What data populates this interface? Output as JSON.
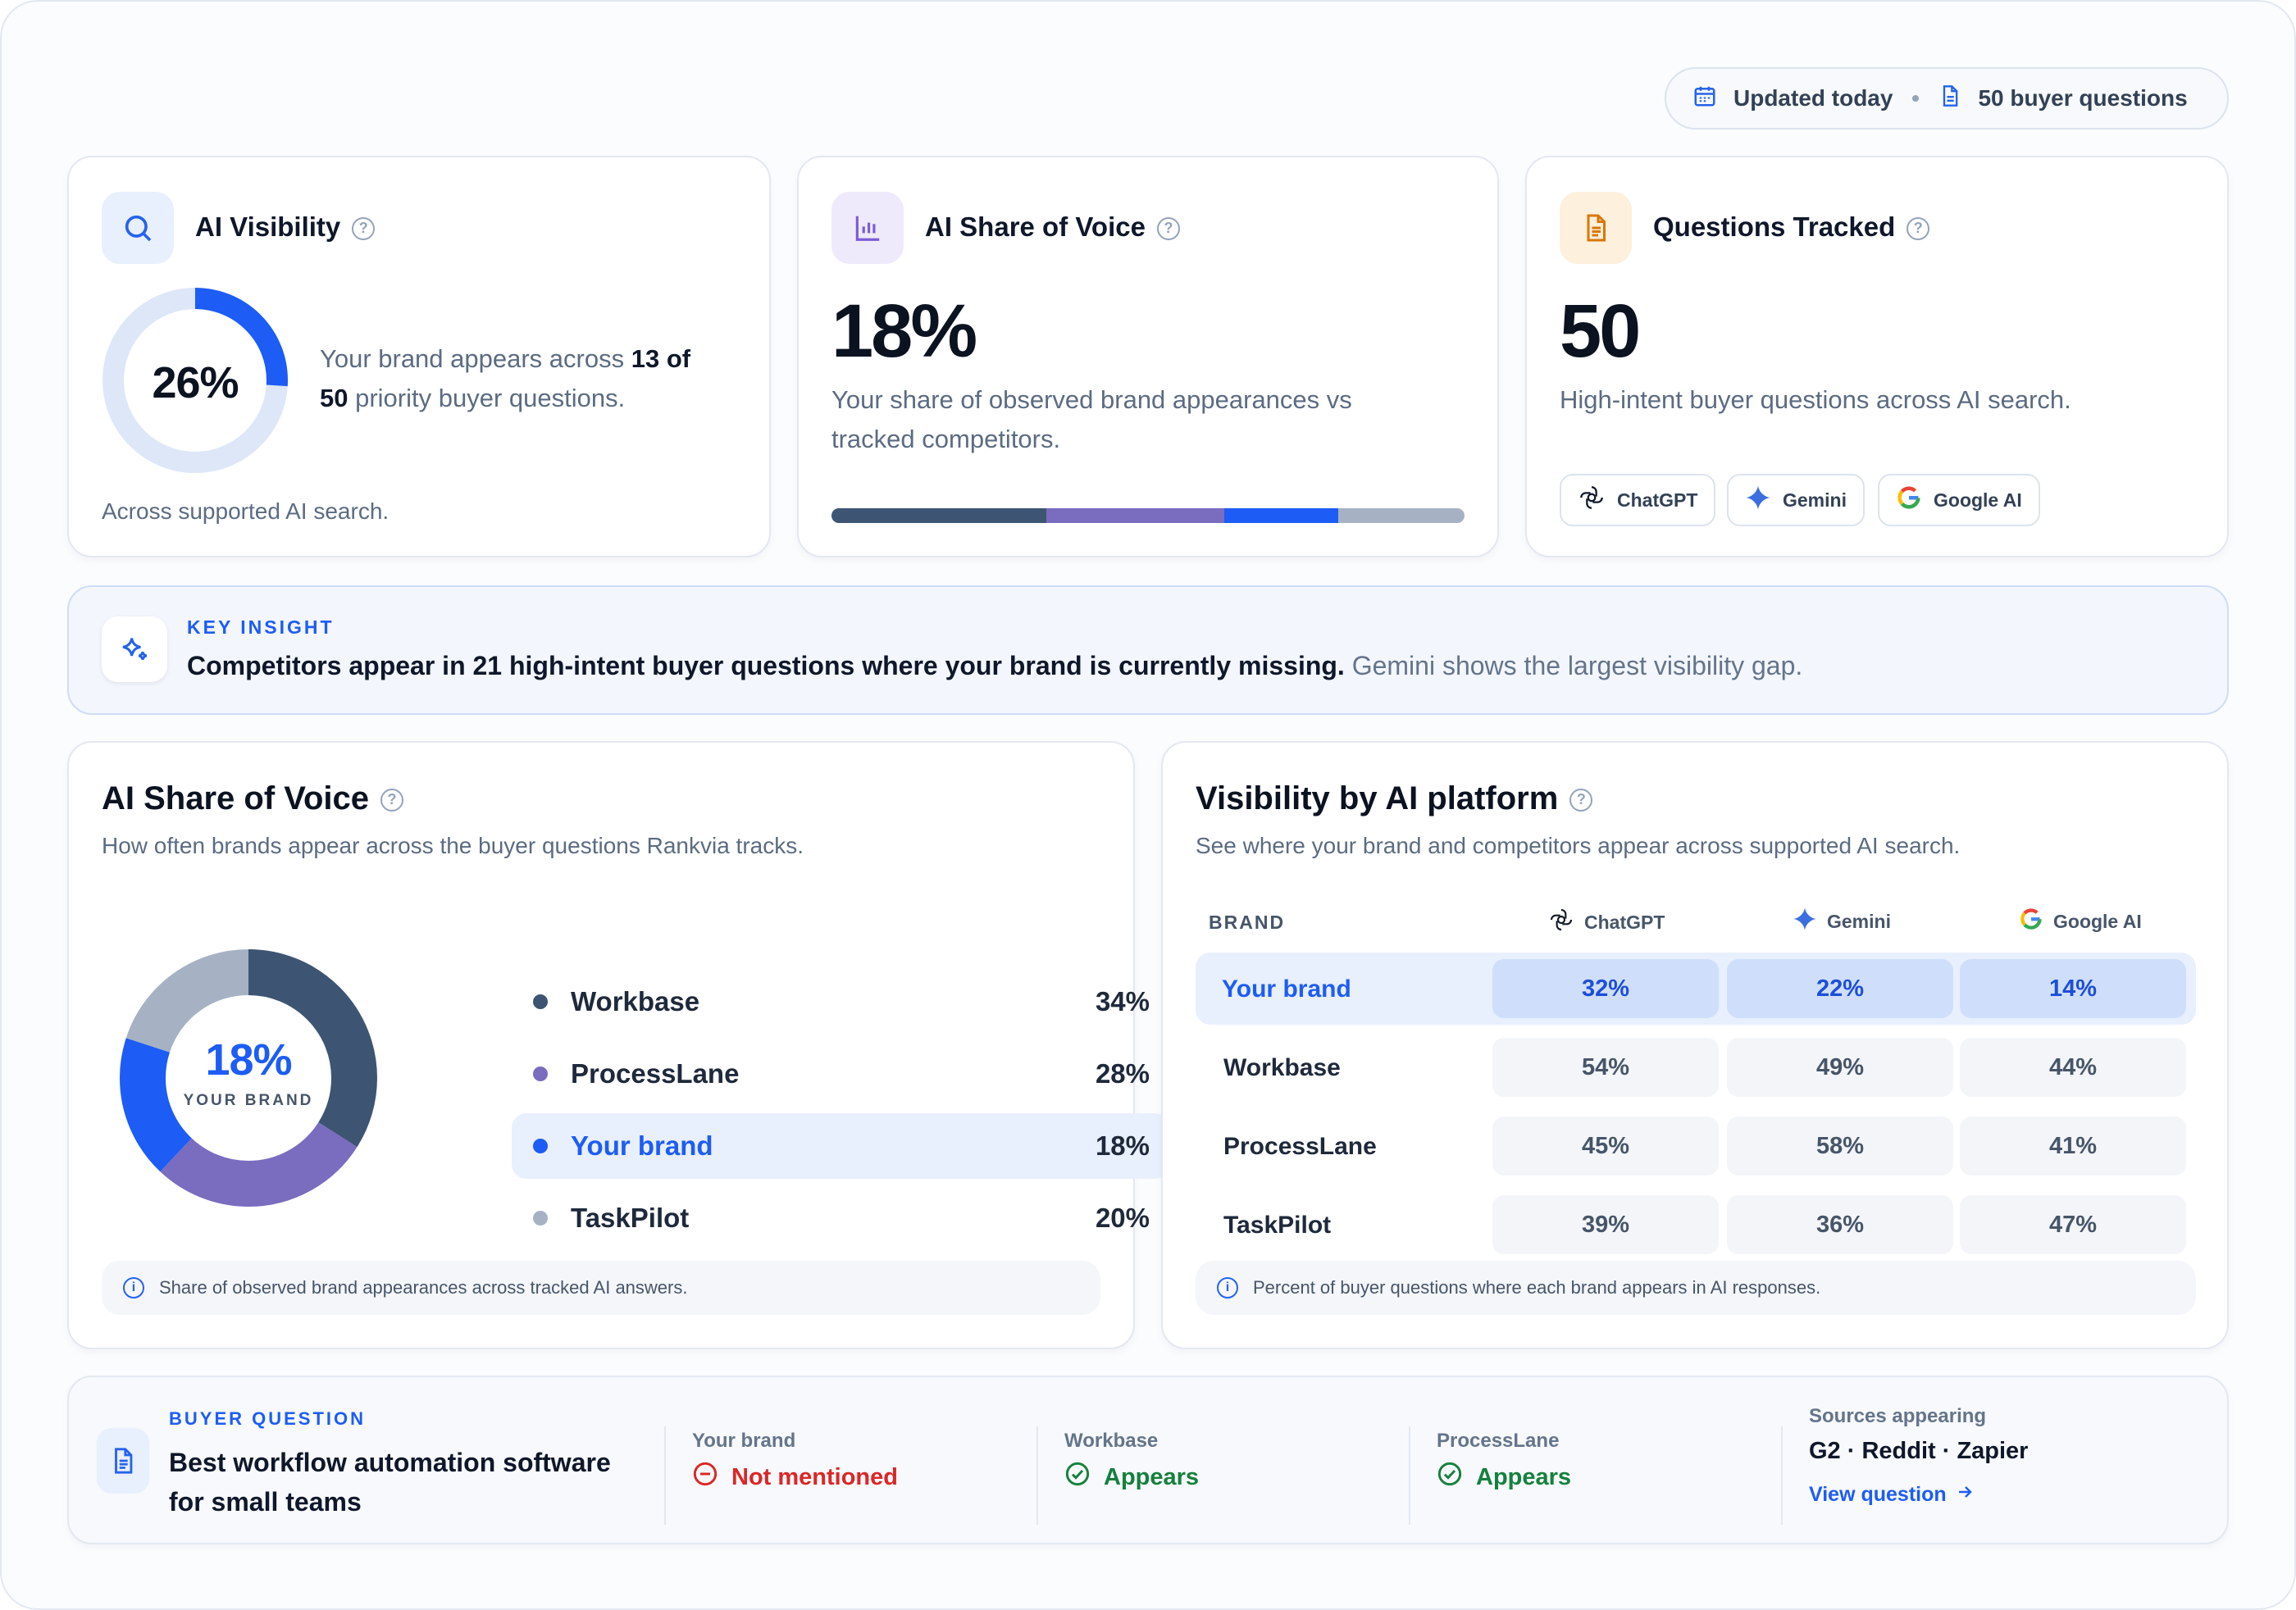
{
  "header": {
    "updated": "Updated today",
    "questions_count": "50 buyer questions"
  },
  "ai_visibility": {
    "title": "AI Visibility",
    "percent": "26%",
    "value": 0.26,
    "desc_prefix": "Your brand appears across ",
    "desc_bold1": "13 of",
    "desc_bold2": "50",
    "desc_suffix": " priority buyer questions.",
    "footer": "Across supported AI search."
  },
  "share_card": {
    "title": "AI Share of Voice",
    "percent": "18%",
    "desc_line1": "Your share of observed brand appearances vs",
    "desc_line2": "tracked competitors.",
    "bar_segments": [
      {
        "name": "Workbase",
        "share": 34,
        "color": "#3d5573"
      },
      {
        "name": "ProcessLane",
        "share": 28,
        "color": "#7a6cbf"
      },
      {
        "name": "Your brand",
        "share": 18,
        "color": "#1d5cf5"
      },
      {
        "name": "TaskPilot",
        "share": 20,
        "color": "#a6b2c4"
      }
    ]
  },
  "questions_card": {
    "title": "Questions Tracked",
    "value": "50",
    "desc": "High-intent buyer questions across AI search.",
    "platforms": [
      "ChatGPT",
      "Gemini",
      "Google AI"
    ]
  },
  "insight": {
    "label": "KEY INSIGHT",
    "bold": "Competitors appear in 21 high-intent buyer questions where your brand is currently missing.",
    "rest": " Gemini shows the largest visibility gap."
  },
  "share_section": {
    "title": "AI Share of Voice",
    "subtitle": "How often brands appear across the buyer questions Rankvia tracks.",
    "center_value": "18%",
    "center_label": "YOUR BRAND",
    "note": "Share of observed brand appearances across tracked AI answers."
  },
  "chart_data": {
    "type": "pie",
    "categories": [
      "Workbase",
      "ProcessLane",
      "Your brand",
      "TaskPilot"
    ],
    "values": [
      34,
      28,
      18,
      20
    ],
    "labels": [
      "34%",
      "28%",
      "18%",
      "20%"
    ],
    "colors": [
      "#3d5573",
      "#7a6cbf",
      "#1d5cf5",
      "#a6b2c4"
    ],
    "highlight": "Your brand"
  },
  "platform_section": {
    "title": "Visibility by AI platform",
    "subtitle": "See where your brand and competitors appear across supported AI search.",
    "col_brand": "BRAND",
    "columns": [
      "ChatGPT",
      "Gemini",
      "Google AI"
    ],
    "rows": [
      {
        "brand": "Your brand",
        "values": [
          "32%",
          "22%",
          "14%"
        ]
      },
      {
        "brand": "Workbase",
        "values": [
          "54%",
          "49%",
          "44%"
        ]
      },
      {
        "brand": "ProcessLane",
        "values": [
          "45%",
          "58%",
          "41%"
        ]
      },
      {
        "brand": "TaskPilot",
        "values": [
          "39%",
          "36%",
          "47%"
        ]
      }
    ],
    "note": "Percent of buyer questions where each brand appears in AI responses."
  },
  "buyer_question": {
    "label": "BUYER QUESTION",
    "line1": "Best workflow automation software",
    "line2": "for small teams",
    "statuses": [
      {
        "brand": "Your brand",
        "status": "Not mentioned",
        "color": "#dc2626"
      },
      {
        "brand": "Workbase",
        "status": "Appears",
        "color": "#15803d"
      },
      {
        "brand": "ProcessLane",
        "status": "Appears",
        "color": "#15803d"
      }
    ],
    "sources_label": "Sources appearing",
    "sources": "G2 · Reddit · Zapier",
    "link": "View question"
  },
  "colors": {
    "accent": "#1d5cf5",
    "accent_light": "#e8effd",
    "danger": "#dc2626",
    "success": "#15803d"
  }
}
